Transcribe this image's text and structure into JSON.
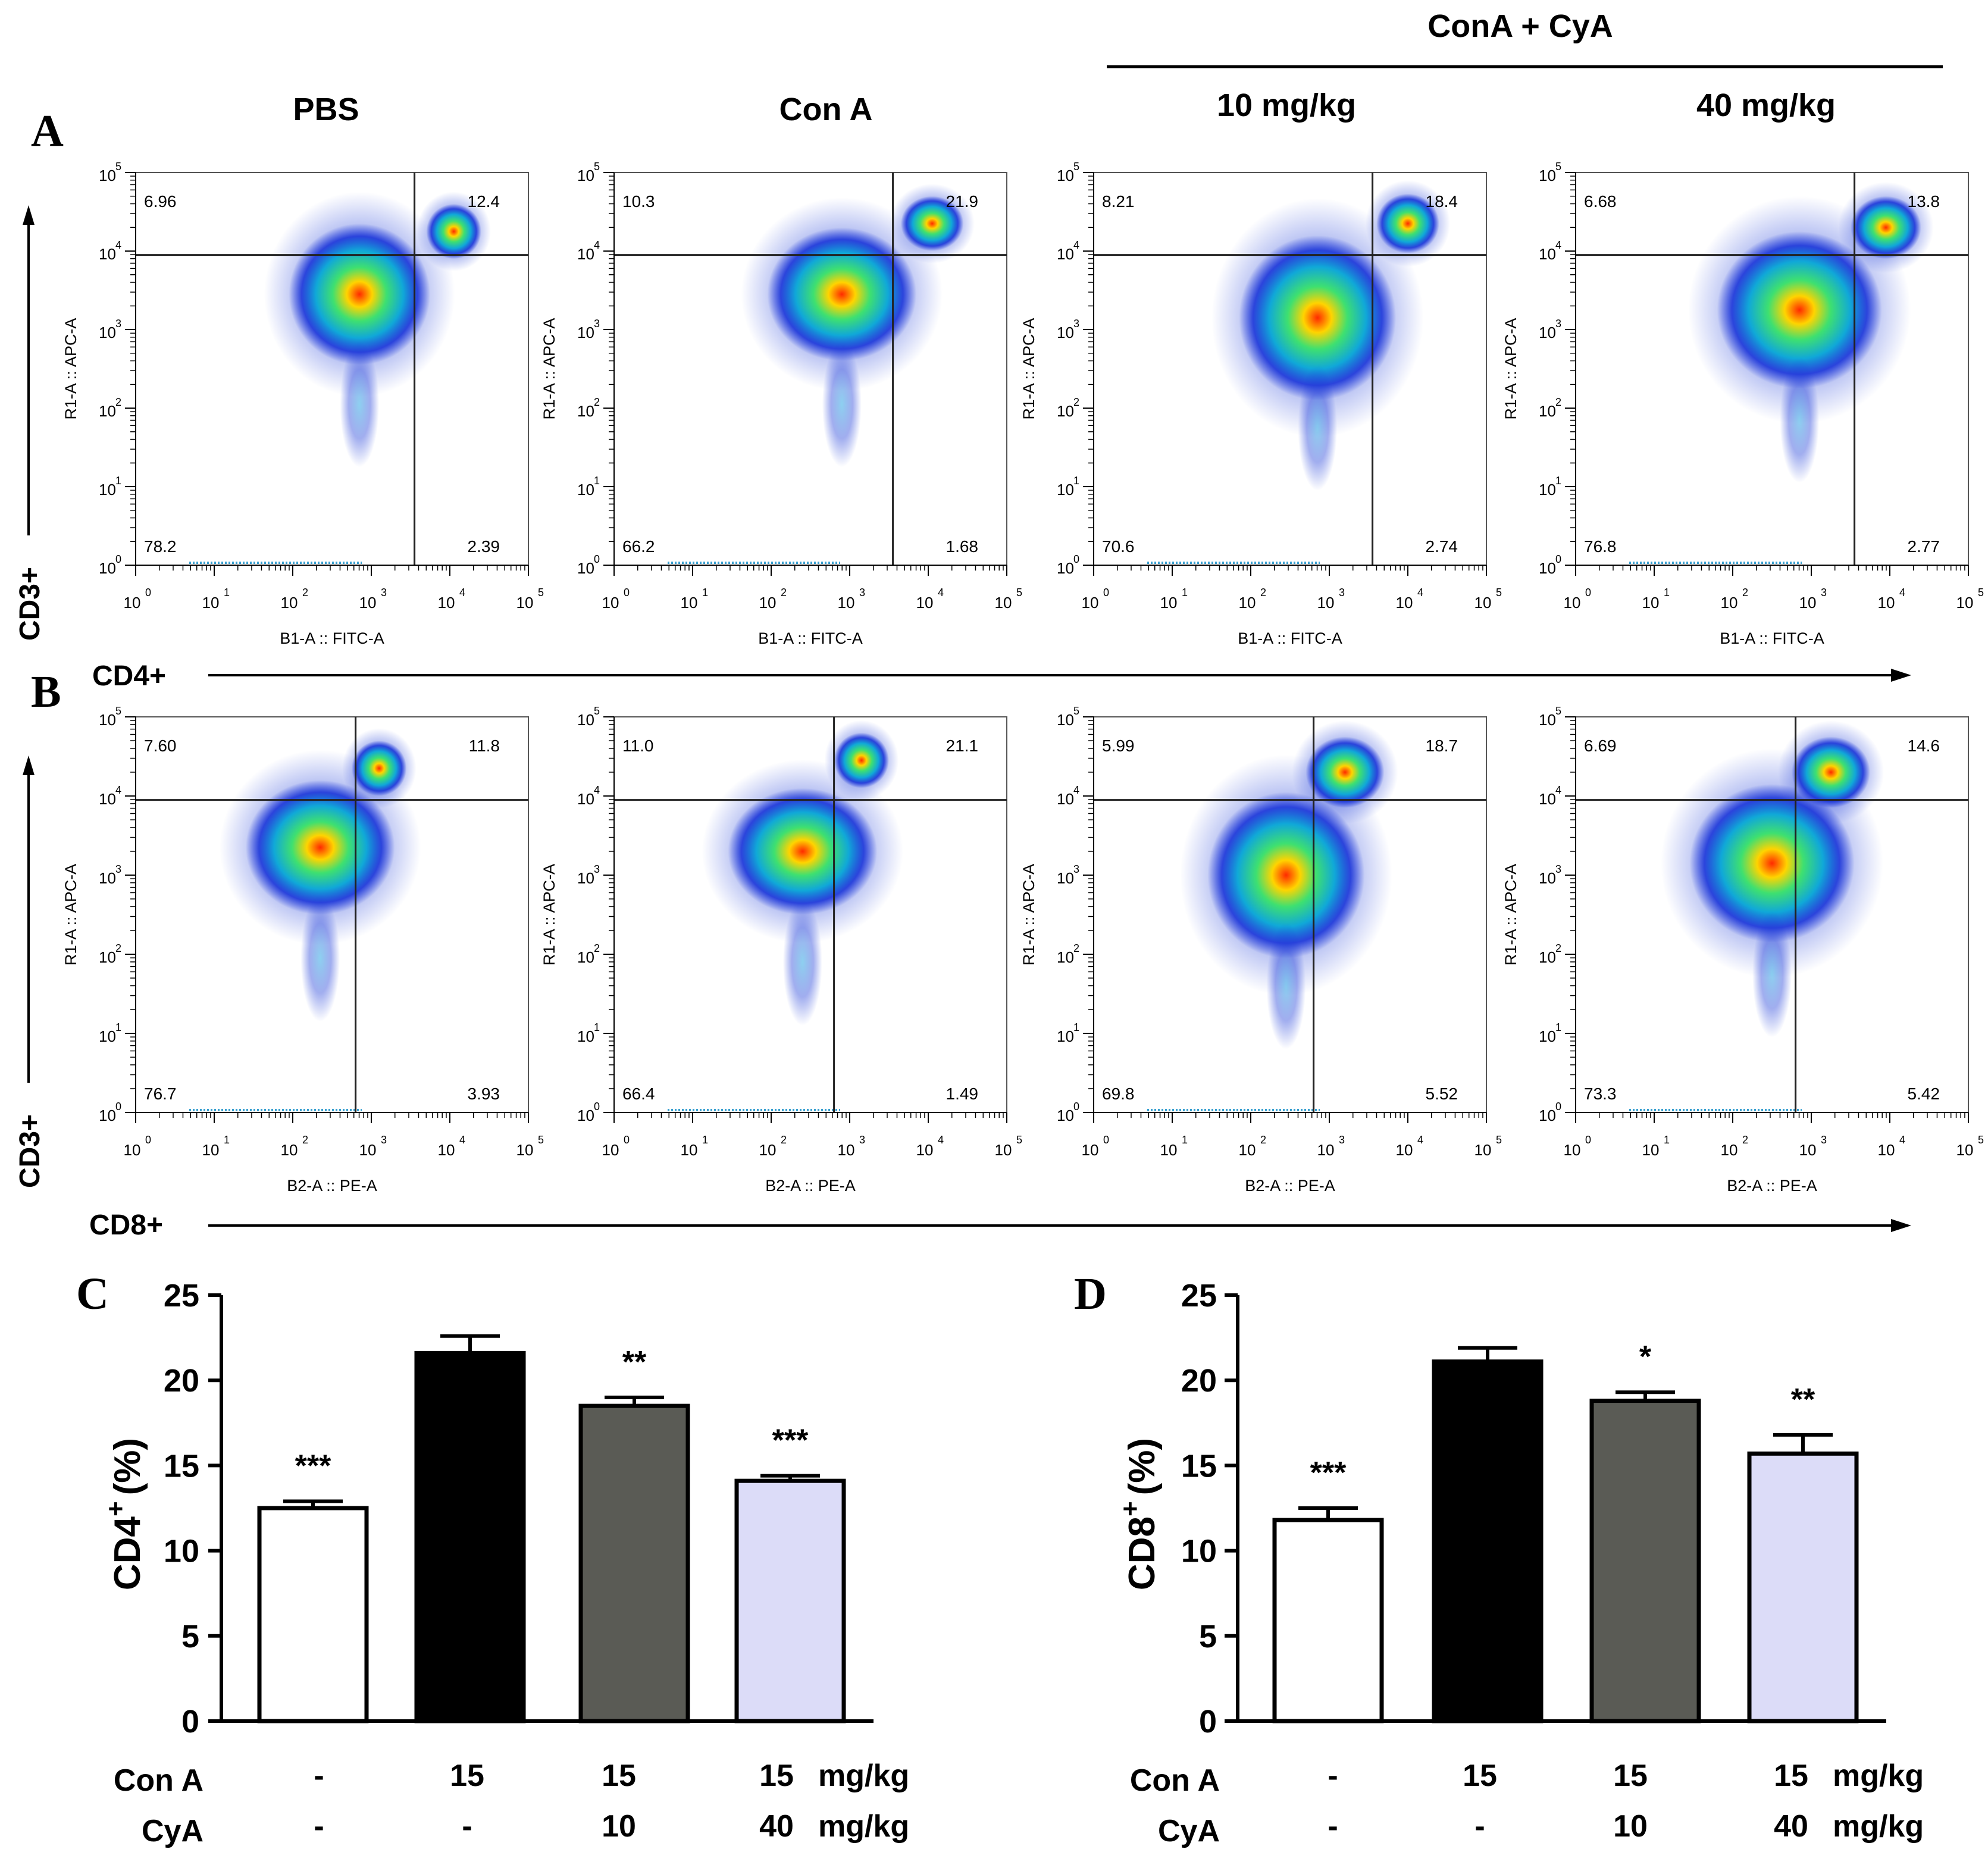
{
  "header": {
    "group_title": "ConA + CyA",
    "columns": [
      "PBS",
      "Con A",
      "10 mg/kg",
      "40 mg/kg"
    ]
  },
  "panels": {
    "A": {
      "letter": "A",
      "ylabel": "CD3+",
      "xlabel": "CD4+",
      "plot_xlabel": "B1-A :: FITC-A",
      "plot_ylabel": "R1-A :: APC-A",
      "plots": [
        {
          "q_ul": "6.96",
          "q_ur": "12.4",
          "q_ll": "78.2",
          "q_lr": "2.39",
          "gx": 3.55,
          "gy": 3.95
        },
        {
          "q_ul": "10.3",
          "q_ur": "21.9",
          "q_ll": "66.2",
          "q_lr": "1.68",
          "gx": 3.55,
          "gy": 3.95
        },
        {
          "q_ul": "8.21",
          "q_ur": "18.4",
          "q_ll": "70.6",
          "q_lr": "2.74",
          "gx": 3.55,
          "gy": 3.95
        },
        {
          "q_ul": "6.68",
          "q_ur": "13.8",
          "q_ll": "76.8",
          "q_lr": "2.77",
          "gx": 3.55,
          "gy": 3.95
        }
      ]
    },
    "B": {
      "letter": "B",
      "ylabel": "CD3+",
      "xlabel": "CD8+",
      "plot_xlabel": "B2-A :: PE-A",
      "plot_ylabel": "R1-A :: APC-A",
      "plots": [
        {
          "q_ul": "7.60",
          "q_ur": "11.8",
          "q_ll": "76.7",
          "q_lr": "3.93",
          "gx": 2.8,
          "gy": 3.95
        },
        {
          "q_ul": "11.0",
          "q_ur": "21.1",
          "q_ll": "66.4",
          "q_lr": "1.49",
          "gx": 2.8,
          "gy": 3.95
        },
        {
          "q_ul": "5.99",
          "q_ur": "18.7",
          "q_ll": "69.8",
          "q_lr": "5.52",
          "gx": 2.8,
          "gy": 3.95
        },
        {
          "q_ul": "6.69",
          "q_ur": "14.6",
          "q_ll": "73.3",
          "q_lr": "5.42",
          "gx": 2.8,
          "gy": 3.95
        }
      ]
    }
  },
  "axis_ticks": [
    "10",
    "10",
    "10",
    "10",
    "10",
    "10"
  ],
  "axis_exps": [
    "0",
    "1",
    "2",
    "3",
    "4",
    "5"
  ],
  "treatment_rows": [
    {
      "label": "Con A",
      "values": [
        "-",
        "15",
        "15",
        "15"
      ],
      "unit": "mg/kg"
    },
    {
      "label": "CyA",
      "values": [
        "-",
        "-",
        "10",
        "40"
      ],
      "unit": "mg/kg"
    }
  ],
  "chart_data": [
    {
      "type": "bar",
      "panel": "C",
      "ylabel": "CD4",
      "ylabel_sup": "+",
      "ylabel_unit": "(%)",
      "ylim": [
        0,
        25
      ],
      "yticks": [
        "0",
        "5",
        "10",
        "15",
        "20",
        "25"
      ],
      "categories": [
        "PBS",
        "Con A",
        "Con A + CyA 10",
        "Con A + CyA 40"
      ],
      "values": [
        12.5,
        21.6,
        18.5,
        14.1
      ],
      "errors": [
        0.4,
        1.0,
        0.5,
        0.3
      ],
      "significance": [
        "***",
        "",
        "**",
        "***"
      ],
      "colors": [
        "#ffffff",
        "#000000",
        "#5a5b55",
        "#dcdcf8"
      ]
    },
    {
      "type": "bar",
      "panel": "D",
      "ylabel": "CD8",
      "ylabel_sup": "+",
      "ylabel_unit": "(%)",
      "ylim": [
        0,
        25
      ],
      "yticks": [
        "0",
        "5",
        "10",
        "15",
        "20",
        "25"
      ],
      "categories": [
        "PBS",
        "Con A",
        "Con A + CyA 10",
        "Con A + CyA 40"
      ],
      "values": [
        11.8,
        21.1,
        18.8,
        15.7
      ],
      "errors": [
        0.7,
        0.8,
        0.5,
        1.1
      ],
      "significance": [
        "***",
        "",
        "*",
        "**"
      ],
      "colors": [
        "#ffffff",
        "#000000",
        "#5a5b55",
        "#dcdcf8"
      ]
    }
  ]
}
